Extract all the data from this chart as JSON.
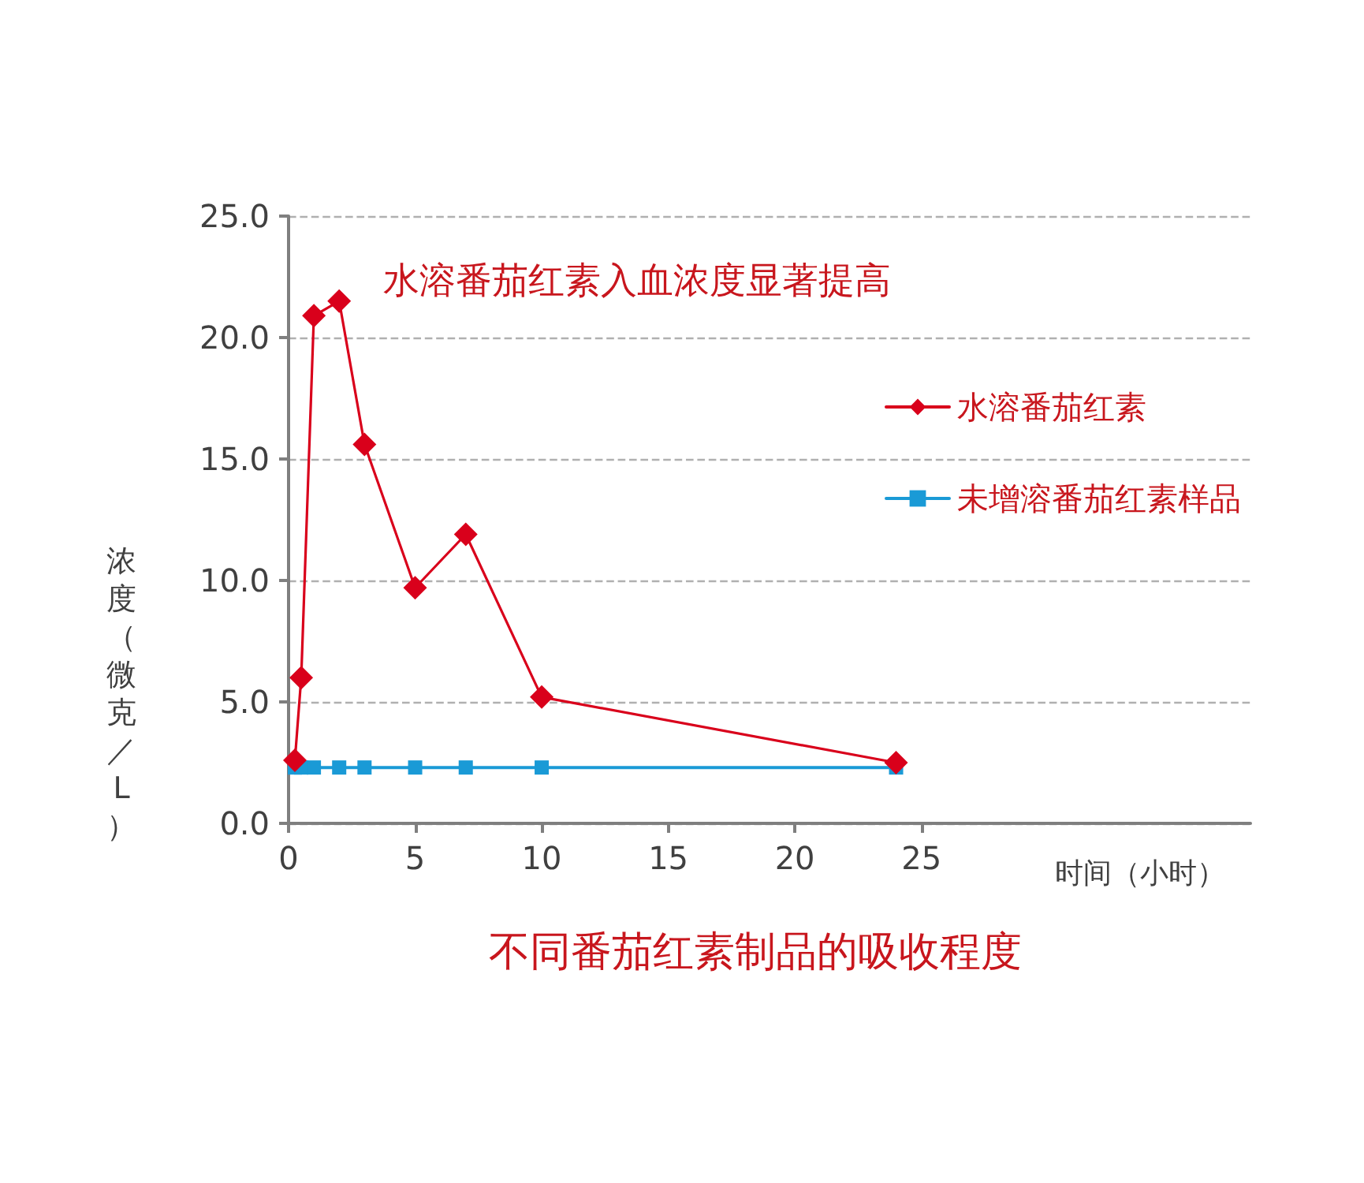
{
  "chart_data": {
    "type": "line",
    "title": "不同番茄红素制品的吸收程度",
    "xlabel": "时间（小时）",
    "ylabel": "浓度（微克／L）",
    "annotations": [
      "水溶番茄红素入血浓度显著提高"
    ],
    "x": [
      0.25,
      0.5,
      1,
      2,
      3,
      5,
      7,
      10,
      24
    ],
    "series": [
      {
        "name": "水溶番茄红素",
        "color": "#d9001b",
        "marker": "diamond",
        "values": [
          2.6,
          6.0,
          20.9,
          21.5,
          15.6,
          9.7,
          11.9,
          5.2,
          2.5
        ]
      },
      {
        "name": "未增溶番茄红素样品",
        "color": "#1a9ad6",
        "marker": "square",
        "values": [
          2.3,
          2.3,
          2.3,
          2.3,
          2.3,
          2.3,
          2.3,
          2.3,
          2.3
        ]
      }
    ],
    "xlim": [
      0,
      38
    ],
    "xticks": [
      0,
      5,
      10,
      15,
      20,
      25
    ],
    "ylim": [
      0,
      25
    ],
    "yticks": [
      {
        "value": 0,
        "label": "0.0"
      },
      {
        "value": 5,
        "label": "5.0"
      },
      {
        "value": 10,
        "label": "10.0"
      },
      {
        "value": 15,
        "label": "15.0"
      },
      {
        "value": 20,
        "label": "20.0"
      },
      {
        "value": 25,
        "label": "25.0"
      }
    ],
    "grid": "y",
    "legend": "right",
    "line_style": "solid"
  }
}
